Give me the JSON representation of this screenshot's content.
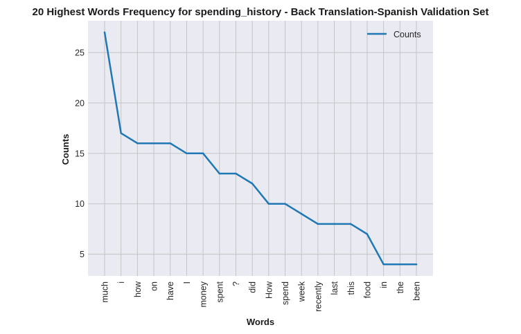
{
  "chart_data": {
    "type": "line",
    "title": "20 Highest Words Frequency for spending_history - Back Translation-Spanish Validation Set",
    "xlabel": "Words",
    "ylabel": "Counts",
    "categories": [
      "much",
      "i",
      "how",
      "on",
      "have",
      "I",
      "money",
      "spent",
      "?",
      "did",
      "How",
      "spend",
      "week",
      "recently",
      "last",
      "this",
      "food",
      "in",
      "the",
      "been"
    ],
    "series": [
      {
        "name": "Counts",
        "values": [
          27,
          17,
          16,
          16,
          16,
          15,
          15,
          13,
          13,
          12,
          10,
          10,
          9,
          8,
          8,
          8,
          7,
          4,
          4,
          4
        ]
      }
    ],
    "yticks": [
      5,
      10,
      15,
      20,
      25
    ],
    "ylim": [
      2.85,
      28.15
    ],
    "grid": true,
    "legend": "top-right",
    "colors": {
      "line": "#1f77b4",
      "background": "#eaeaf2",
      "grid": "#c4c4c4"
    }
  }
}
